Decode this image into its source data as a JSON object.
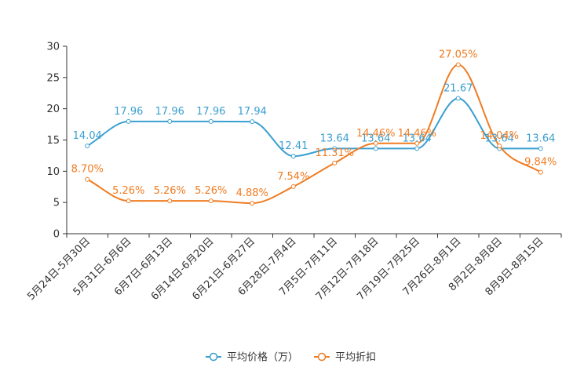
{
  "chart_data": {
    "type": "line",
    "title": "",
    "xlabel": "",
    "ylabel": "",
    "ylim": [
      0,
      30
    ],
    "yticks": [
      0,
      5,
      10,
      15,
      20,
      25,
      30
    ],
    "grid": false,
    "legend_position": "bottom-center",
    "categories": [
      "5月24日-5月30日",
      "5月31日-6月6日",
      "6月7日-6月13日",
      "6月14日-6月20日",
      "6月21日-6月27日",
      "6月28日-7月4日",
      "7月5日-7月11日",
      "7月12日-7月18日",
      "7月19日-7月25日",
      "7月26日-8月1日",
      "8月2日-8月8日",
      "8月9日-8月15日"
    ],
    "series": [
      {
        "name": "平均价格（万）",
        "color": "#3a9fd0",
        "values": [
          14.04,
          17.96,
          17.96,
          17.96,
          17.94,
          12.41,
          13.64,
          13.64,
          13.64,
          21.67,
          13.64,
          13.64
        ],
        "labels": [
          "14.04",
          "17.96",
          "17.96",
          "17.96",
          "17.94",
          "12.41",
          "13.64",
          "13.64",
          "13.64",
          "21.67",
          "13.64",
          "13.64"
        ]
      },
      {
        "name": "平均折扣",
        "color": "#f07c22",
        "values": [
          8.7,
          5.26,
          5.26,
          5.26,
          4.88,
          7.54,
          11.31,
          14.46,
          14.46,
          27.05,
          14.04,
          9.84
        ],
        "labels": [
          "8.70%",
          "5.26%",
          "5.26%",
          "5.26%",
          "4.88%",
          "7.54%",
          "11.31%",
          "14.46%",
          "14.46%",
          "27.05%",
          "14.04%",
          "9.84%"
        ]
      }
    ]
  }
}
